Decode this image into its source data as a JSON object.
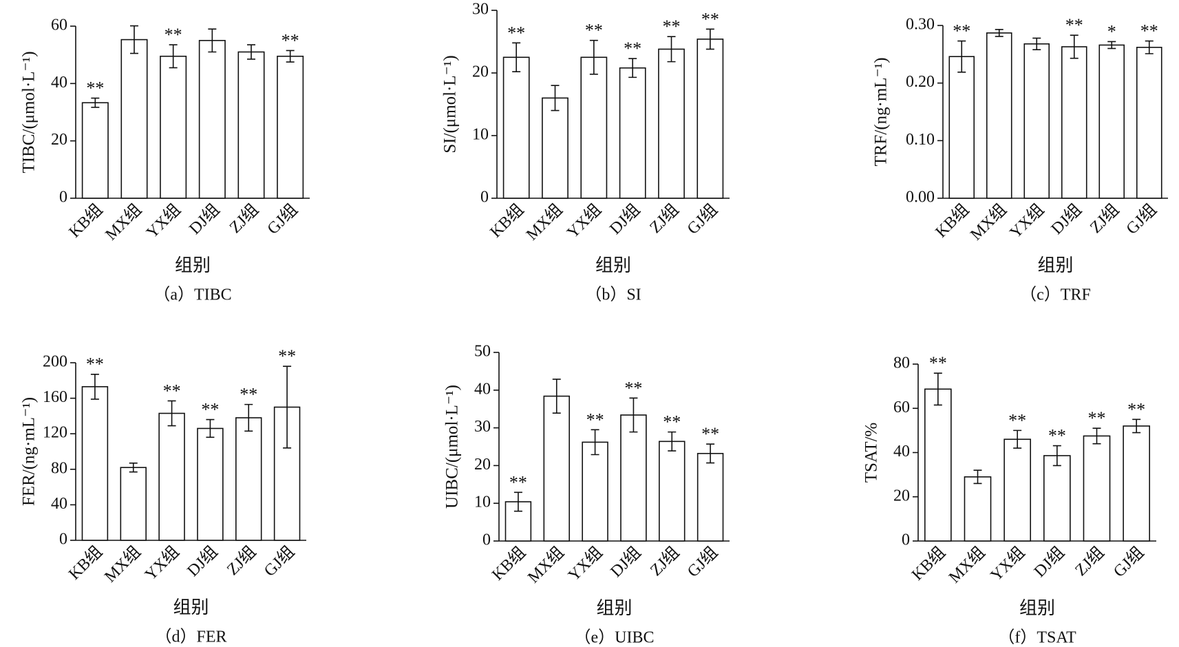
{
  "chart_data": [
    {
      "type": "bar",
      "title": "（a）TIBC",
      "xlabel": "组别",
      "ylabel": "TIBC/(μmol·L⁻¹)",
      "categories": [
        "KB组",
        "MX组",
        "YX组",
        "DJ组",
        "ZJ组",
        "GJ组"
      ],
      "values": [
        33.3,
        55.3,
        49.5,
        55,
        51,
        49.5
      ],
      "errors": [
        1.6,
        4.8,
        4,
        4,
        2.5,
        2
      ],
      "annotations": [
        "**",
        null,
        "**",
        null,
        null,
        "**"
      ],
      "ylim": [
        0,
        60
      ],
      "yticks": [
        0,
        20,
        40,
        60
      ],
      "color": "#ffffff"
    },
    {
      "type": "bar",
      "title": "（b）SI",
      "xlabel": "组别",
      "ylabel": "SI/(μmol·L⁻¹)",
      "categories": [
        "KB组",
        "MX组",
        "YX组",
        "DJ组",
        "ZJ组",
        "GJ组"
      ],
      "values": [
        22.5,
        16,
        22.5,
        20.8,
        23.8,
        25.4
      ],
      "errors": [
        2.3,
        2,
        2.7,
        1.5,
        2,
        1.6
      ],
      "annotations": [
        "**",
        null,
        "**",
        "**",
        "**",
        "**"
      ],
      "ylim": [
        0,
        30
      ],
      "yticks": [
        0,
        10,
        20,
        30
      ],
      "color": "#ffffff"
    },
    {
      "type": "bar",
      "title": "（c）TRF",
      "xlabel": "组别",
      "ylabel": "TRF/(ng·mL⁻¹)",
      "categories": [
        "KB组",
        "MX组",
        "YX组",
        "DJ组",
        "ZJ组",
        "GJ组"
      ],
      "values": [
        0.246,
        0.287,
        0.268,
        0.263,
        0.266,
        0.262
      ],
      "errors": [
        0.027,
        0.006,
        0.01,
        0.02,
        0.006,
        0.011
      ],
      "annotations": [
        "**",
        null,
        null,
        "**",
        "*",
        "**"
      ],
      "ylim": [
        0,
        0.3
      ],
      "yticks": [
        {
          "value": 0,
          "label": "0.00"
        },
        {
          "value": 0.1,
          "label": "0.10"
        },
        {
          "value": 0.2,
          "label": "0.20"
        },
        {
          "value": 0.3,
          "label": "0.30"
        }
      ],
      "color": "#ffffff"
    },
    {
      "type": "bar",
      "title": "（d）FER",
      "xlabel": "组别",
      "ylabel": "FER/(ng·mL⁻¹)",
      "categories": [
        "KB组",
        "MX组",
        "YX组",
        "DJ组",
        "ZJ组",
        "GJ组"
      ],
      "values": [
        173,
        82,
        143,
        126,
        138,
        150
      ],
      "errors": [
        14,
        5,
        14,
        10,
        15,
        46
      ],
      "annotations": [
        "**",
        null,
        "**",
        "**",
        "**",
        "**"
      ],
      "ylim": [
        0,
        200
      ],
      "yticks": [
        0,
        40,
        80,
        120,
        160,
        200
      ],
      "color": "#ffffff"
    },
    {
      "type": "bar",
      "title": "（e）UIBC",
      "xlabel": "组别",
      "ylabel": "UIBC/(μmol·L⁻¹)",
      "categories": [
        "KB组",
        "MX组",
        "YX组",
        "DJ组",
        "ZJ组",
        "GJ组"
      ],
      "values": [
        10.4,
        38.4,
        26.2,
        33.4,
        26.4,
        23.2
      ],
      "errors": [
        2.5,
        4.5,
        3.3,
        4.5,
        2.5,
        2.5
      ],
      "annotations": [
        "**",
        null,
        "**",
        "**",
        "**",
        "**"
      ],
      "ylim": [
        0,
        50
      ],
      "yticks": [
        0,
        10,
        20,
        30,
        40,
        50
      ],
      "color": "#ffffff"
    },
    {
      "type": "bar",
      "title": "（f）TSAT",
      "xlabel": "组别",
      "ylabel": "TSAT/%",
      "categories": [
        "KB组",
        "MX组",
        "YX组",
        "DJ组",
        "ZJ组",
        "GJ组"
      ],
      "values": [
        68.7,
        29,
        46,
        38.6,
        47.5,
        52
      ],
      "errors": [
        7.2,
        3,
        4,
        4.5,
        3.5,
        3
      ],
      "annotations": [
        "**",
        null,
        "**",
        "**",
        "**",
        "**"
      ],
      "ylim": [
        0,
        80
      ],
      "yticks": [
        0,
        20,
        40,
        60,
        80
      ],
      "color": "#ffffff"
    }
  ]
}
